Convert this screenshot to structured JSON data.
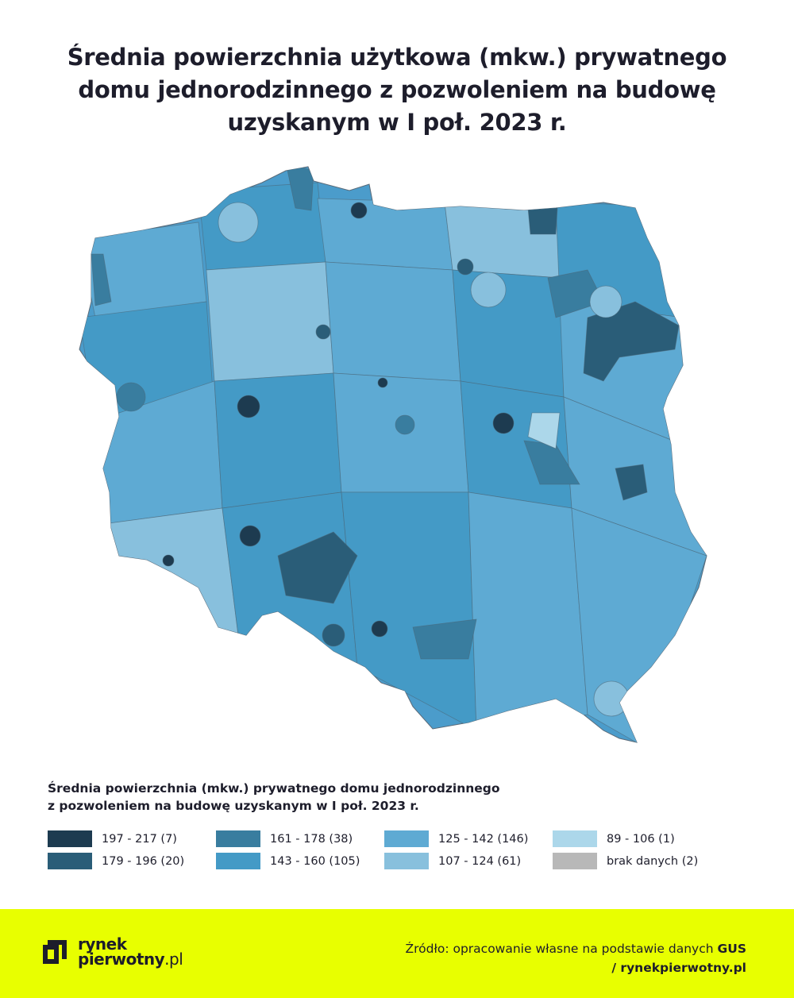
{
  "header": {
    "title_lines": [
      "Średnia powierzchnia użytkowa (mkw.) prywatnego",
      "domu jednorodzinnego z pozwoleniem na budowę",
      "uzyskanym w I poł. 2023 r."
    ]
  },
  "legend": {
    "title_lines": [
      "Średnia powierzchnia (mkw.) prywatnego domu jednorodzinnego",
      "z pozwoleniem na budowę uzyskanym w I poł. 2023 r."
    ],
    "items": [
      {
        "label": "197 - 217 (7)",
        "color": "#1d3b50"
      },
      {
        "label": "179 - 196 (20)",
        "color": "#2a5d78"
      },
      {
        "label": "161 - 178 (38)",
        "color": "#397d9f"
      },
      {
        "label": "143 - 160 (105)",
        "color": "#449ac6"
      },
      {
        "label": "125 - 142 (146)",
        "color": "#5eaad3"
      },
      {
        "label": "107 - 124 (61)",
        "color": "#88c0dd"
      },
      {
        "label": "89 - 106 (1)",
        "color": "#acd7ea"
      },
      {
        "label": "brak danych (2)",
        "color": "#b8b8b8"
      }
    ]
  },
  "footer": {
    "logo_top": "rynek",
    "logo_bottom": "pierwotny",
    "logo_suffix": ".pl",
    "source": "Źródło: opracowanie własne na podstawie danych",
    "source_bold": "GUS",
    "site": "/ rynekpierwotny.pl"
  }
}
